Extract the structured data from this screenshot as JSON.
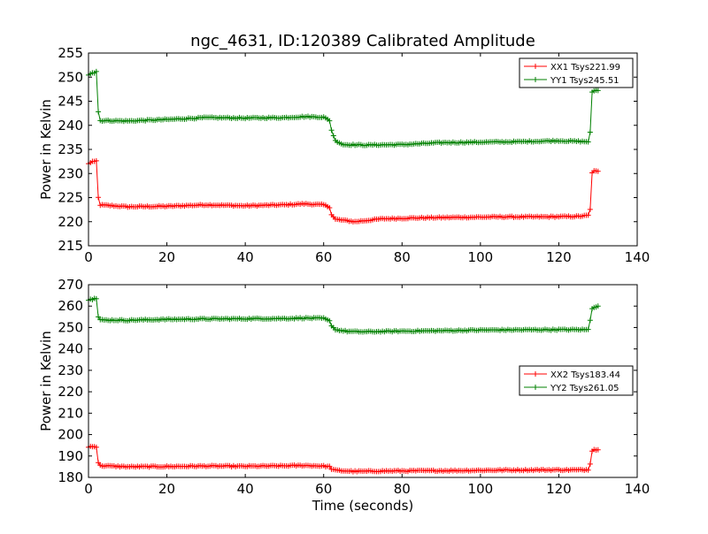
{
  "figure": {
    "title": "ngc_4631, ID:120389 Calibrated Amplitude"
  },
  "chart_data": [
    {
      "type": "line",
      "title": "ngc_4631, ID:120389 Calibrated Amplitude",
      "xlabel": "",
      "ylabel": "Power in Kelvin",
      "xlim": [
        0,
        140
      ],
      "ylim": [
        215,
        255
      ],
      "x_ticks": [
        "0",
        "20",
        "40",
        "60",
        "80",
        "100",
        "120",
        "140"
      ],
      "y_ticks": [
        "215",
        "220",
        "225",
        "230",
        "235",
        "240",
        "245",
        "250",
        "255"
      ],
      "grid": false,
      "legend_position": "top-right",
      "marker": "+",
      "series": [
        {
          "name": "XX1 Tsys221.99",
          "color": "#ff0000",
          "points": [
            [
              0,
              232.0
            ],
            [
              0.5,
              232.3
            ],
            [
              1,
              232.5
            ],
            [
              1.5,
              232.4
            ],
            [
              2,
              232.6
            ],
            [
              2.3,
              228.0
            ],
            [
              2.6,
              223.5
            ],
            [
              10,
              223.1
            ],
            [
              20,
              223.2
            ],
            [
              30,
              223.5
            ],
            [
              40,
              223.3
            ],
            [
              50,
              223.5
            ],
            [
              55,
              223.7
            ],
            [
              60,
              223.5
            ],
            [
              61.5,
              223.0
            ],
            [
              62,
              221.5
            ],
            [
              63,
              220.5
            ],
            [
              68,
              220.0
            ],
            [
              75,
              220.6
            ],
            [
              85,
              220.8
            ],
            [
              95,
              220.9
            ],
            [
              105,
              221.0
            ],
            [
              115,
              221.0
            ],
            [
              125,
              221.1
            ],
            [
              127.5,
              221.3
            ],
            [
              128,
              222.5
            ],
            [
              128.5,
              230.2
            ],
            [
              129,
              230.5
            ],
            [
              130,
              230.4
            ]
          ]
        },
        {
          "name": "YY1 Tsys245.51",
          "color": "#008000",
          "points": [
            [
              0,
              250.5
            ],
            [
              0.5,
              250.8
            ],
            [
              1,
              251.0
            ],
            [
              1.5,
              250.9
            ],
            [
              2,
              251.2
            ],
            [
              2.3,
              246.5
            ],
            [
              2.6,
              241.0
            ],
            [
              10,
              240.9
            ],
            [
              20,
              241.2
            ],
            [
              30,
              241.6
            ],
            [
              40,
              241.5
            ],
            [
              50,
              241.6
            ],
            [
              55,
              241.8
            ],
            [
              60,
              241.7
            ],
            [
              61.5,
              241.0
            ],
            [
              62,
              239.0
            ],
            [
              63,
              236.8
            ],
            [
              65,
              236.0
            ],
            [
              70,
              235.9
            ],
            [
              80,
              236.0
            ],
            [
              90,
              236.4
            ],
            [
              100,
              236.5
            ],
            [
              110,
              236.6
            ],
            [
              120,
              236.8
            ],
            [
              127.5,
              236.6
            ],
            [
              128,
              238.5
            ],
            [
              128.5,
              246.8
            ],
            [
              129,
              247.2
            ],
            [
              130,
              247.3
            ]
          ]
        }
      ]
    },
    {
      "type": "line",
      "title": "",
      "xlabel": "Time (seconds)",
      "ylabel": "Power in Kelvin",
      "xlim": [
        0,
        140
      ],
      "ylim": [
        180,
        270
      ],
      "x_ticks": [
        "0",
        "20",
        "40",
        "60",
        "80",
        "100",
        "120",
        "140"
      ],
      "y_ticks": [
        "180",
        "190",
        "200",
        "210",
        "220",
        "230",
        "240",
        "250",
        "260",
        "270"
      ],
      "grid": false,
      "legend_position": "center-right",
      "marker": "+",
      "series": [
        {
          "name": "XX2 Tsys183.44",
          "color": "#ff0000",
          "points": [
            [
              0,
              194.0
            ],
            [
              0.5,
              194.5
            ],
            [
              1,
              194.3
            ],
            [
              1.5,
              194.6
            ],
            [
              2,
              194.2
            ],
            [
              2.3,
              190.0
            ],
            [
              2.6,
              185.5
            ],
            [
              10,
              185.0
            ],
            [
              20,
              185.1
            ],
            [
              30,
              185.3
            ],
            [
              40,
              185.2
            ],
            [
              50,
              185.4
            ],
            [
              55,
              185.6
            ],
            [
              60,
              185.3
            ],
            [
              61.5,
              185.0
            ],
            [
              62,
              184.0
            ],
            [
              63,
              183.3
            ],
            [
              68,
              182.8
            ],
            [
              75,
              183.0
            ],
            [
              85,
              183.1
            ],
            [
              95,
              183.2
            ],
            [
              105,
              183.4
            ],
            [
              115,
              183.5
            ],
            [
              125,
              183.5
            ],
            [
              127.5,
              183.6
            ],
            [
              128,
              186.5
            ],
            [
              128.5,
              192.5
            ],
            [
              129,
              193.0
            ],
            [
              130,
              192.8
            ]
          ]
        },
        {
          "name": "YY2 Tsys261.05",
          "color": "#008000",
          "points": [
            [
              0,
              263.0
            ],
            [
              0.5,
              263.5
            ],
            [
              1,
              263.2
            ],
            [
              1.5,
              263.8
            ],
            [
              2,
              263.4
            ],
            [
              2.3,
              258.0
            ],
            [
              2.6,
              253.5
            ],
            [
              10,
              253.4
            ],
            [
              20,
              253.8
            ],
            [
              30,
              254.0
            ],
            [
              40,
              254.1
            ],
            [
              50,
              254.2
            ],
            [
              55,
              254.4
            ],
            [
              60,
              254.3
            ],
            [
              61.5,
              253.0
            ],
            [
              62,
              251.0
            ],
            [
              63,
              249.0
            ],
            [
              66,
              248.2
            ],
            [
              70,
              248.0
            ],
            [
              80,
              248.3
            ],
            [
              90,
              248.5
            ],
            [
              100,
              248.8
            ],
            [
              110,
              248.9
            ],
            [
              120,
              249.0
            ],
            [
              127.5,
              249.0
            ],
            [
              128,
              253.5
            ],
            [
              128.5,
              259.0
            ],
            [
              129,
              259.6
            ],
            [
              130,
              259.8
            ]
          ]
        }
      ]
    }
  ]
}
